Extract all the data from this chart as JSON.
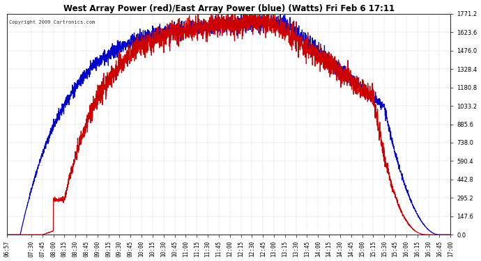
{
  "title": "West Array Power (red)/East Array Power (blue) (Watts) Fri Feb 6 17:11",
  "copyright": "Copyright 2009 Cartronics.com",
  "bg_color": "#ffffff",
  "plot_bg_color": "#ffffff",
  "grid_color": "#aaaaaa",
  "text_color": "#000000",
  "title_color": "#000000",
  "y_min": 0.0,
  "y_max": 1771.2,
  "y_tick_step": 147.6,
  "x_labels": [
    "06:57",
    "07:30",
    "07:45",
    "08:00",
    "08:15",
    "08:30",
    "08:45",
    "09:00",
    "09:15",
    "09:30",
    "09:45",
    "10:00",
    "10:15",
    "10:30",
    "10:45",
    "11:00",
    "11:15",
    "11:30",
    "11:45",
    "12:00",
    "12:15",
    "12:30",
    "12:45",
    "13:00",
    "13:15",
    "13:30",
    "13:45",
    "14:00",
    "14:15",
    "14:30",
    "14:45",
    "15:00",
    "15:15",
    "15:30",
    "15:45",
    "16:00",
    "16:15",
    "16:30",
    "16:45",
    "17:00"
  ],
  "red_line_color": "#cc0000",
  "blue_line_color": "#0000cc",
  "line_width": 0.9,
  "noise_red": 45,
  "noise_blue": 30
}
